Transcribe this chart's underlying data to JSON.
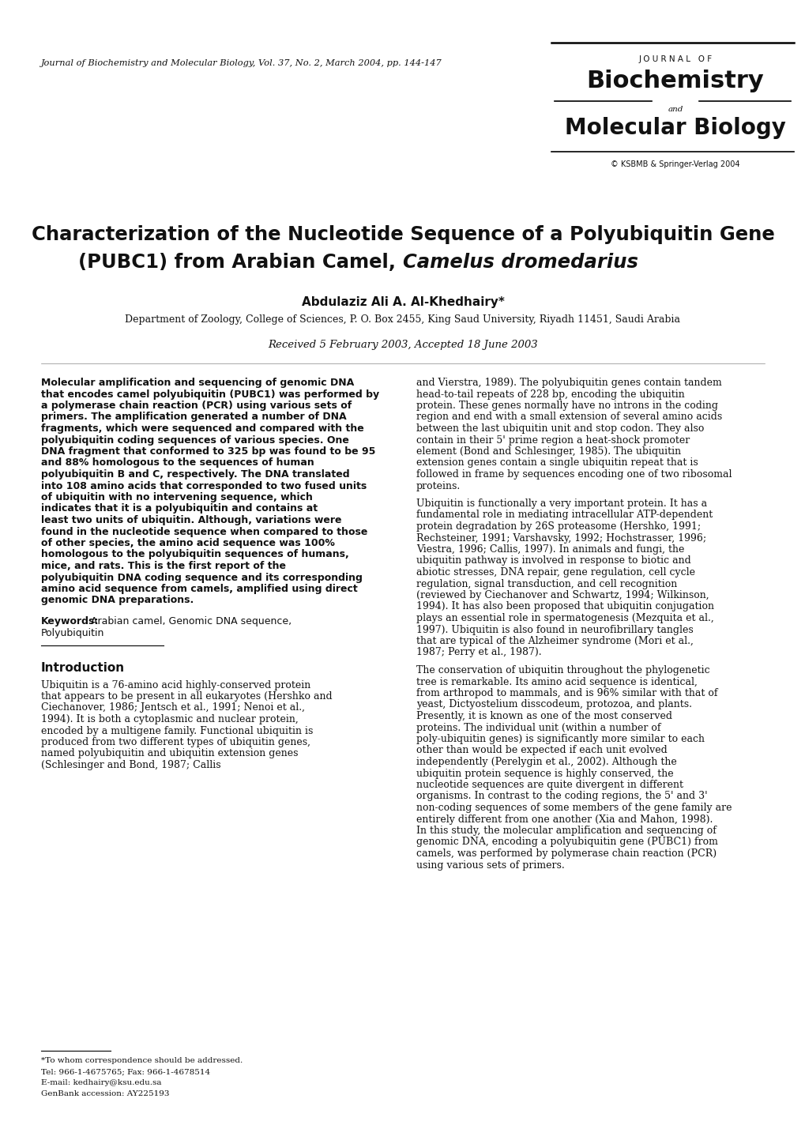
{
  "background_color": "#ffffff",
  "journal_citation": "Journal of Biochemistry and Molecular Biology, Vol. 37, No. 2, March 2004, pp. 144-147",
  "journal_of": "J O U R N A L   O F",
  "journal_biochemistry": "Biochemistry",
  "journal_and": "and",
  "journal_molecular": "Molecular Biology",
  "journal_copyright": "© KSBMB & Springer-Verlag 2004",
  "title_line1": "Characterization of the Nucleotide Sequence of a Polyubiquitin Gene",
  "title_line2_normal": "(PUBC1) from Arabian Camel, ",
  "title_line2_italic": "Camelus dromedarius",
  "author": "Abdulaziz Ali A. Al-Khedhairy*",
  "affiliation": "Department of Zoology, College of Sciences, P. O. Box 2455, King Saud University, Riyadh 11451, Saudi Arabia",
  "received": "Received 5 February 2003, Accepted 18 June 2003",
  "abstract_text": "Molecular amplification and sequencing of genomic DNA that encodes camel polyubiquitin (PUBC1) was performed by a polymerase chain reaction (PCR) using various sets of primers. The amplification generated a number of DNA fragments, which were sequenced and compared with the polyubiquitin coding sequences of various species. One DNA fragment that conformed to 325 bp was found to be 95 and 88% homologous to the sequences of human polyubiquitin B and C, respectively. The DNA translated into 108 amino acids that corresponded to two fused units of ubiquitin with no intervening sequence, which indicates that it is a polyubiquitin and contains at least two units of ubiquitin. Although, variations were found in the nucleotide sequence when compared to those of other species, the amino acid sequence was 100% homologous to the polyubiquitin sequences of humans, mice, and rats. This is the first report of the polyubiquitin DNA coding sequence and its corresponding amino acid sequence from camels, amplified using direct genomic DNA preparations.",
  "keywords_label": "Keywords:",
  "keywords_values": "Arabian camel, Genomic DNA sequence,",
  "keywords_line2": "Polyubiquitin",
  "footnote_1": "*To whom correspondence should be addressed.",
  "footnote_2": "Tel: 966-1-4675765; Fax: 966-1-4678514",
  "footnote_3": "E-mail: kedhairy@ksu.edu.sa",
  "footnote_4": "GenBank accession: AY225193",
  "intro_heading": "Introduction",
  "intro_text": "Ubiquitin is a 76-amino acid highly-conserved protein that appears to be present in all eukaryotes (Hershko and Ciechanover, 1986; Jentsch et al., 1991; Nenoi et al., 1994). It is both a cytoplasmic and nuclear protein, encoded by a multigene family. Functional ubiquitin is produced from two different types of ubiquitin genes, named polyubiquitin and ubiquitin extension genes (Schlesinger and Bond, 1987; Callis",
  "right_p1": "and Vierstra, 1989). The polyubiquitin genes contain tandem head-to-tail repeats of 228 bp, encoding the ubiquitin protein. These genes normally have no introns in the coding region and end with a small extension of several amino acids between the last ubiquitin unit and stop codon. They also contain in their 5' prime region a heat-shock promoter element (Bond and Schlesinger, 1985). The ubiquitin extension genes contain a single ubiquitin repeat that is followed in frame by sequences encoding one of two ribosomal proteins.",
  "right_p2": "Ubiquitin is functionally a very important protein. It has a fundamental role in mediating intracellular ATP-dependent protein degradation by 26S proteasome (Hershko, 1991; Rechsteiner, 1991; Varshavsky, 1992; Hochstrasser, 1996; Viestra, 1996; Callis, 1997). In animals and fungi, the ubiquitin pathway is involved in response to biotic and abiotic stresses, DNA repair, gene regulation, cell cycle regulation, signal transduction, and cell recognition (reviewed by Ciechanover and Schwartz, 1994; Wilkinson, 1994). It has also been proposed that ubiquitin conjugation plays an essential role in spermatogenesis (Mezquita et al., 1997). Ubiquitin is also found in neurofibrillary tangles that are typical of the Alzheimer syndrome (Mori et al., 1987; Perry et al., 1987).",
  "right_p3": "The conservation of ubiquitin throughout the phylogenetic tree is remarkable. Its amino acid sequence is identical, from arthropod to mammals, and is 96% similar with that of yeast, Dictyostelium disscodeum, protozoa, and plants. Presently, it is known as one of the most conserved proteins. The individual unit (within a number of poly-ubiquitin genes) is significantly more similar to each other than would be expected if each unit evolved independently (Perelygin et al., 2002). Although the ubiquitin protein sequence is highly conserved, the nucleotide sequences are quite divergent in different organisms. In contrast to the coding regions, the 5' and 3' non-coding sequences of some members of the gene family are entirely different from one another (Xia and Mahon, 1998). In this study, the molecular amplification and sequencing of genomic DNA, encoding a polyubiquitin gene (PUBC1) from camels, was performed by polymerase chain reaction (PCR) using various sets of primers."
}
